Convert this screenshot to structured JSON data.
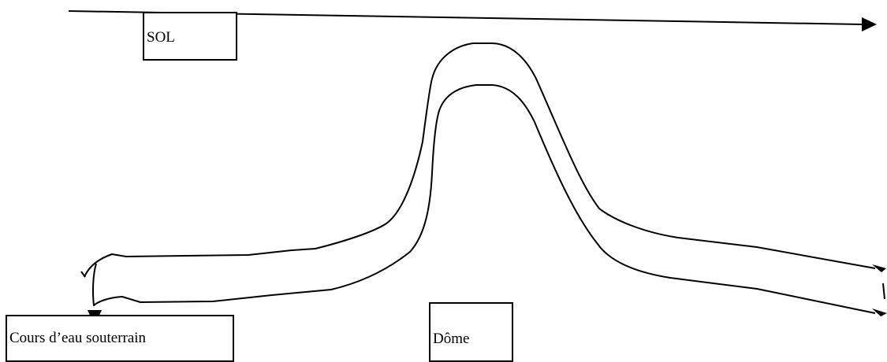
{
  "labels": {
    "sol": "SOL",
    "underground_stream": "Cours d’eau souterrain",
    "dome": "Dôme"
  },
  "colors": {
    "line": "#000000",
    "background": "#ffffff"
  }
}
